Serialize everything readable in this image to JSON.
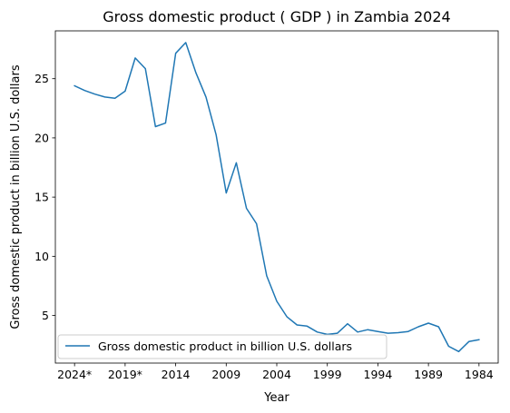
{
  "chart_data": {
    "type": "line",
    "title": "Gross domestic product ( GDP ) in Zambia 2024",
    "xlabel": "Year",
    "ylabel": "Gross domestic product in billion U.S. dollars",
    "x_direction": "descending (2024* on left, 1984 on right)",
    "xlim": [
      2025.9,
      1982.1
    ],
    "ylim": [
      0.98,
      29.04
    ],
    "x_tick_values": [
      2024,
      2019,
      2014,
      2009,
      2004,
      1999,
      1994,
      1989,
      1984
    ],
    "x_tick_labels": [
      "2024*",
      "2019*",
      "2014",
      "2009",
      "2004",
      "1999",
      "1994",
      "1989",
      "1984"
    ],
    "y_ticks": [
      5,
      10,
      15,
      20,
      25
    ],
    "legend_position": "lower-left",
    "grid": false,
    "colors": {
      "series": "#1f77b4"
    },
    "series": [
      {
        "name": "Gross domestic product in billion U.S. dollars",
        "x": [
          2024,
          2023,
          2022,
          2021,
          2020,
          2019,
          2018,
          2017,
          2016,
          2015,
          2014,
          2013,
          2012,
          2011,
          2010,
          2009,
          2008,
          2007,
          2006,
          2005,
          2004,
          2003,
          2002,
          2001,
          2000,
          1999,
          1998,
          1997,
          1996,
          1995,
          1994,
          1993,
          1992,
          1991,
          1990,
          1989,
          1988,
          1987,
          1986,
          1985,
          1984
        ],
        "values": [
          24.4,
          24.0,
          23.7,
          23.45,
          23.35,
          23.95,
          26.75,
          25.85,
          20.95,
          21.25,
          27.15,
          28.05,
          25.5,
          23.45,
          20.25,
          15.35,
          17.9,
          14.05,
          12.75,
          8.35,
          6.2,
          4.9,
          4.2,
          4.1,
          3.6,
          3.4,
          3.5,
          4.3,
          3.6,
          3.8,
          3.65,
          3.5,
          3.55,
          3.65,
          4.05,
          4.35,
          4.05,
          2.4,
          1.95,
          2.8,
          2.95
        ]
      }
    ]
  }
}
